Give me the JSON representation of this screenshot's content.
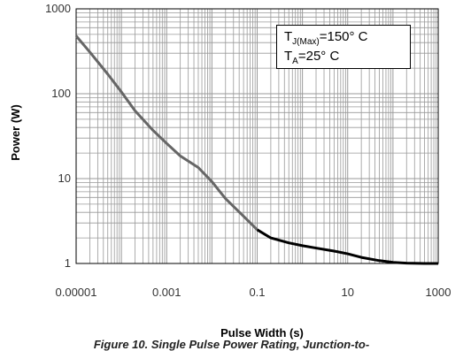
{
  "chart_data": {
    "type": "line",
    "xlabel": "Pulse Width (s)",
    "ylabel": "Power (W)",
    "x_scale": "log",
    "y_scale": "log",
    "xlim": [
      1e-05,
      1000
    ],
    "ylim": [
      1,
      1000
    ],
    "grid": true,
    "x_ticks": [
      "0.00001",
      "0.001",
      "0.1",
      "10",
      "1000"
    ],
    "y_ticks": [
      "1",
      "10",
      "100",
      "1000"
    ],
    "annotation": {
      "line1_main": "T",
      "line1_sub": "J(Max)",
      "line1_rest": "=150° C",
      "line2_main": "T",
      "line2_sub": "A",
      "line2_rest": "=25° C"
    },
    "caption": "Figure 10. Single Pulse Power Rating, Junction-to-",
    "series": [
      {
        "x": [
          1e-05,
          2e-05,
          5e-05,
          0.0001,
          0.0002,
          0.0005,
          0.001,
          0.002,
          0.005,
          0.01,
          0.02,
          0.05,
          0.1,
          0.2,
          0.5,
          1,
          2,
          5,
          10,
          20,
          50,
          100,
          200,
          500,
          1000
        ],
        "y": [
          480,
          310,
          170,
          105,
          63,
          37,
          26,
          18.5,
          13.5,
          9.2,
          5.8,
          3.6,
          2.5,
          2.0,
          1.75,
          1.62,
          1.52,
          1.4,
          1.3,
          1.18,
          1.08,
          1.03,
          1.01,
          1.0,
          1.0
        ]
      }
    ],
    "colors": {
      "grid": "#999999",
      "curve_light": "#666666",
      "curve_dark": "#000000",
      "axis": "#000000"
    }
  }
}
